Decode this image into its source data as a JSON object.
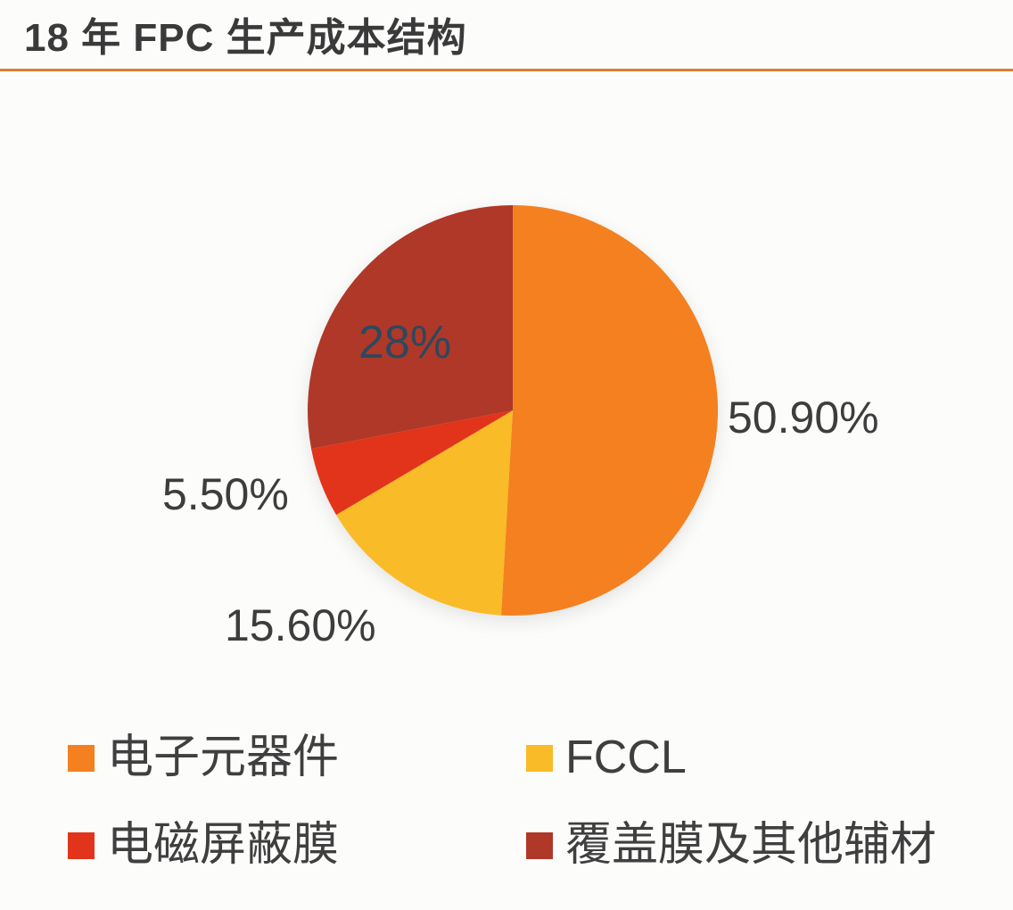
{
  "header": {
    "divider_color": "#d97e33"
  },
  "chart_data": {
    "type": "pie",
    "title": "18 年 FPC 生产成本结构",
    "start_angle_deg": 0,
    "direction": "clockwise",
    "legend_position": "bottom",
    "background_color": "#fcfcfb",
    "title_color": "#3a3a3a",
    "outside_label_color": "#3d3d3d",
    "inside_label_color": "#2d485e",
    "slices": [
      {
        "label": "电子元器件",
        "value": 50.9,
        "display": "50.90%",
        "color": "#f5801f",
        "label_placement": "outside-right"
      },
      {
        "label": "FCCL",
        "value": 15.6,
        "display": "15.60%",
        "color": "#f9bb27",
        "label_placement": "outside-bottom-left"
      },
      {
        "label": "电磁屏蔽膜",
        "value": 5.5,
        "display": "5.50%",
        "color": "#e2341b",
        "label_placement": "outside-left"
      },
      {
        "label": "覆盖膜及其他辅材",
        "value": 28,
        "display": "28%",
        "color": "#b03828",
        "label_placement": "inside"
      }
    ]
  }
}
